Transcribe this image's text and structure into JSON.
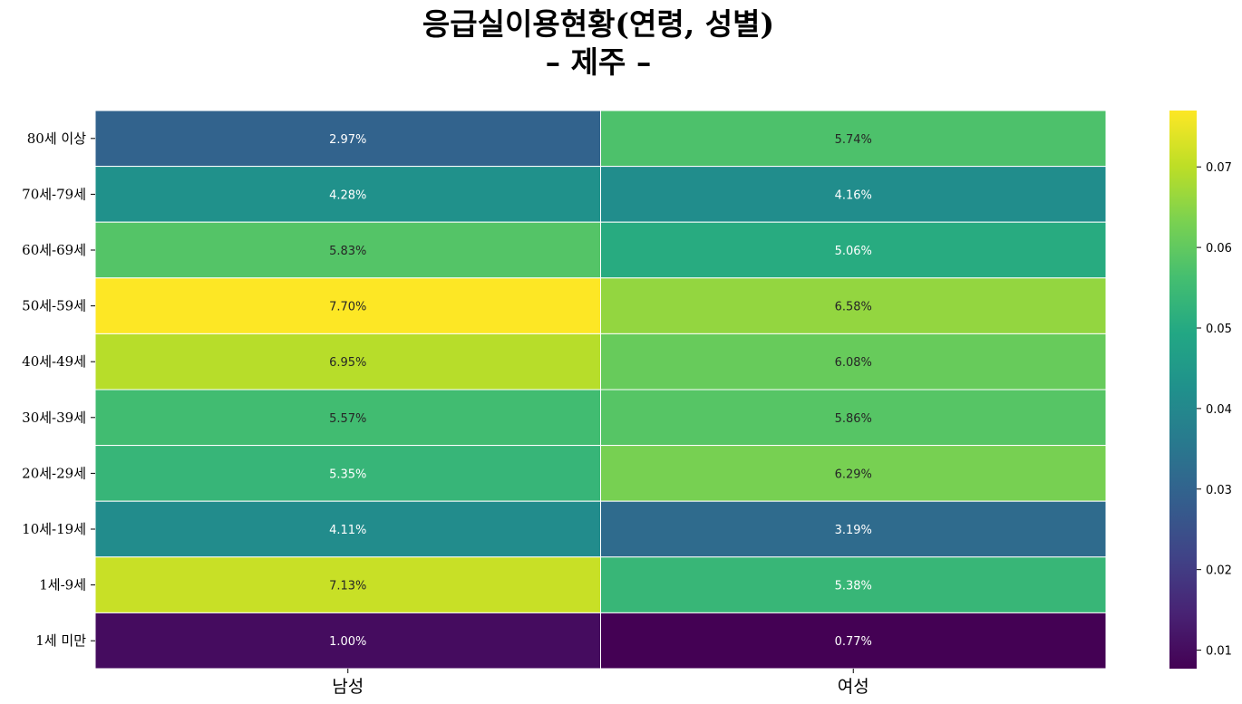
{
  "chart_data": {
    "type": "heatmap",
    "title": "응급실이용현황(연령, 성별)",
    "subtitle": "– 제주 –",
    "columns": [
      "남성",
      "여성"
    ],
    "rows": [
      "80세 이상",
      "70세-79세",
      "60세-69세",
      "50세-59세",
      "40세-49세",
      "30세-39세",
      "20세-29세",
      "10세-19세",
      "1세-9세",
      "1세 미만"
    ],
    "values": [
      [
        0.0297,
        0.0574
      ],
      [
        0.0428,
        0.0416
      ],
      [
        0.0583,
        0.0506
      ],
      [
        0.077,
        0.0658
      ],
      [
        0.0695,
        0.0608
      ],
      [
        0.0557,
        0.0586
      ],
      [
        0.0535,
        0.0629
      ],
      [
        0.0411,
        0.0319
      ],
      [
        0.0713,
        0.0538
      ],
      [
        0.01,
        0.0077
      ]
    ],
    "cell_labels": [
      [
        "2.97%",
        "5.74%"
      ],
      [
        "4.28%",
        "4.16%"
      ],
      [
        "5.83%",
        "5.06%"
      ],
      [
        "7.70%",
        "6.58%"
      ],
      [
        "6.95%",
        "6.08%"
      ],
      [
        "5.57%",
        "5.86%"
      ],
      [
        "5.35%",
        "6.29%"
      ],
      [
        "4.11%",
        "3.19%"
      ],
      [
        "7.13%",
        "5.38%"
      ],
      [
        "1.00%",
        "0.77%"
      ]
    ],
    "colormap": "viridis",
    "vmin": 0.0077,
    "vmax": 0.077,
    "colorbar_ticks": [
      0.01,
      0.02,
      0.03,
      0.04,
      0.05,
      0.06,
      0.07
    ],
    "colorbar_tick_labels": [
      "0.01",
      "0.02",
      "0.03",
      "0.04",
      "0.05",
      "0.06",
      "0.07"
    ],
    "grid": true,
    "grid_color": "#ffffff"
  }
}
